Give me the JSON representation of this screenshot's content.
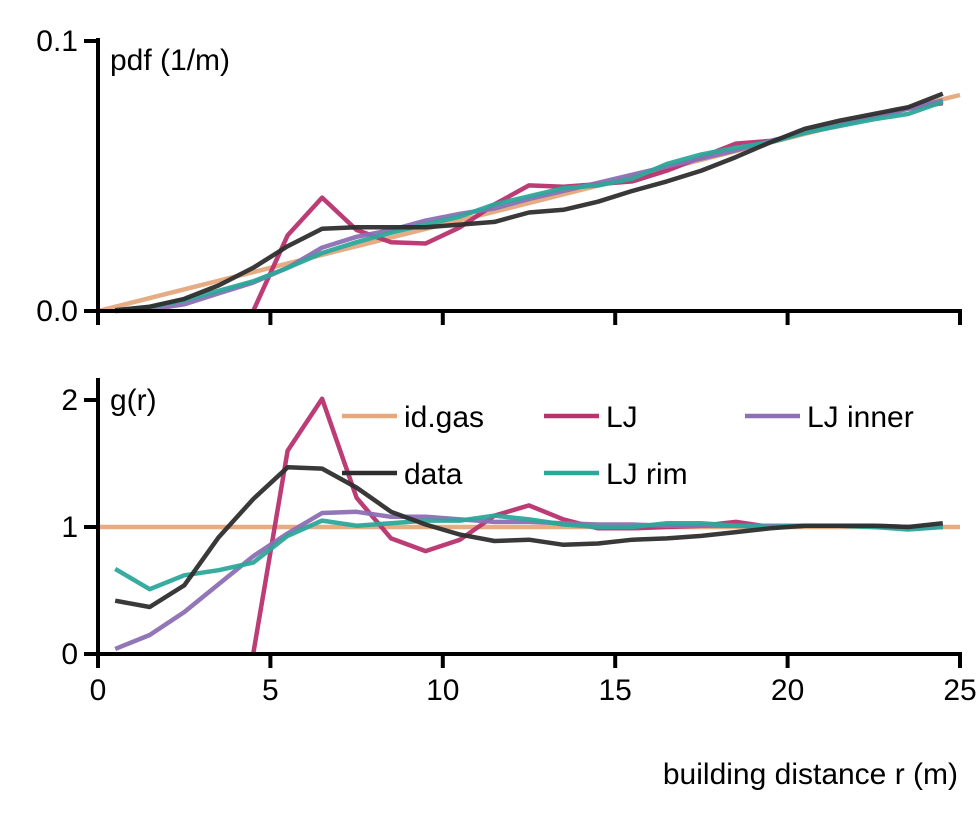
{
  "chart_data": [
    {
      "type": "line",
      "ylabel": "pdf (1/m)",
      "xlim": [
        0,
        25
      ],
      "ylim": [
        0,
        0.1
      ],
      "ytick_labels": [
        "0.0",
        "0.1"
      ],
      "ytick_values": [
        0,
        0.1
      ],
      "xtick_values": [
        0,
        5,
        10,
        15,
        20,
        25
      ],
      "series": [
        {
          "name": "id.gas",
          "color": "#e5a87c",
          "x": [
            0,
            1,
            2,
            3,
            4,
            5,
            6,
            7,
            8,
            9,
            10,
            11,
            12,
            13,
            14,
            15,
            16,
            17,
            18,
            19,
            20,
            21,
            22,
            23,
            24,
            25
          ],
          "y": [
            0.0,
            0.0032,
            0.0064,
            0.0096,
            0.0128,
            0.016,
            0.0192,
            0.0224,
            0.0256,
            0.0288,
            0.032,
            0.0352,
            0.0384,
            0.0416,
            0.0448,
            0.048,
            0.0512,
            0.0544,
            0.0576,
            0.0608,
            0.064,
            0.0672,
            0.0704,
            0.0736,
            0.0768,
            0.08
          ]
        },
        {
          "name": "LJ",
          "color": "#b8326e",
          "x": [
            4.5,
            5.5,
            6.5,
            7.5,
            8.5,
            9.5,
            10.5,
            11.5,
            12.5,
            13.5,
            14.5,
            15.5,
            16.5,
            17.5,
            18.5,
            19.5,
            20.5,
            21.5,
            22.5,
            23.5,
            24.5
          ],
          "y": [
            0.0,
            0.028,
            0.042,
            0.03,
            0.0255,
            0.025,
            0.031,
            0.0395,
            0.0465,
            0.046,
            0.047,
            0.048,
            0.052,
            0.057,
            0.062,
            0.063,
            0.066,
            0.069,
            0.072,
            0.075,
            0.077
          ]
        },
        {
          "name": "LJ inner",
          "color": "#8c6fb4",
          "x": [
            0.5,
            1.5,
            2.5,
            3.5,
            4.5,
            5.5,
            6.5,
            7.5,
            8.5,
            9.5,
            10.5,
            11.5,
            12.5,
            13.5,
            14.5,
            15.5,
            16.5,
            17.5,
            18.5,
            19.5,
            20.5,
            21.5,
            22.5,
            23.5,
            24.5
          ],
          "y": [
            0.0,
            0.0005,
            0.0025,
            0.0065,
            0.0105,
            0.016,
            0.0235,
            0.0275,
            0.03,
            0.0335,
            0.036,
            0.038,
            0.0415,
            0.0445,
            0.0475,
            0.0505,
            0.0535,
            0.0565,
            0.0595,
            0.063,
            0.066,
            0.069,
            0.072,
            0.075,
            0.078
          ]
        },
        {
          "name": "LJ rim",
          "color": "#2ca89a",
          "x": [
            0.5,
            1.5,
            2.5,
            3.5,
            4.5,
            5.5,
            6.5,
            7.5,
            8.5,
            9.5,
            10.5,
            11.5,
            12.5,
            13.5,
            14.5,
            15.5,
            16.5,
            17.5,
            18.5,
            19.5,
            20.5,
            21.5,
            22.5,
            23.5,
            24.5
          ],
          "y": [
            0.0,
            0.0015,
            0.004,
            0.0075,
            0.011,
            0.016,
            0.0215,
            0.0255,
            0.029,
            0.032,
            0.035,
            0.0395,
            0.0425,
            0.0455,
            0.0465,
            0.049,
            0.0545,
            0.058,
            0.0605,
            0.0625,
            0.066,
            0.0685,
            0.071,
            0.073,
            0.0775
          ]
        },
        {
          "name": "data",
          "color": "#2e2e2e",
          "x": [
            0.5,
            1.5,
            2.5,
            3.5,
            4.5,
            5.5,
            6.5,
            7.5,
            8.5,
            9.5,
            10.5,
            11.5,
            12.5,
            13.5,
            14.5,
            15.5,
            16.5,
            17.5,
            18.5,
            19.5,
            20.5,
            21.5,
            22.5,
            23.5,
            24.5
          ],
          "y": [
            0.0003,
            0.0016,
            0.0045,
            0.0095,
            0.016,
            0.024,
            0.0305,
            0.031,
            0.031,
            0.031,
            0.032,
            0.033,
            0.0365,
            0.0375,
            0.0405,
            0.0445,
            0.048,
            0.052,
            0.057,
            0.0625,
            0.0675,
            0.0705,
            0.073,
            0.0755,
            0.0805
          ]
        }
      ]
    },
    {
      "type": "line",
      "ylabel": "g(r)",
      "xlabel": "building distance r (m)",
      "xlim": [
        0,
        25
      ],
      "ylim": [
        0,
        2.15
      ],
      "ytick_labels": [
        "0",
        "1",
        "2"
      ],
      "ytick_values": [
        0,
        1,
        2
      ],
      "xtick_labels": [
        "0",
        "5",
        "10",
        "15",
        "20",
        "25"
      ],
      "xtick_values": [
        0,
        5,
        10,
        15,
        20,
        25
      ],
      "legend": {
        "placement": "top-right",
        "entries": [
          {
            "label": "id.gas",
            "color": "#e5a87c"
          },
          {
            "label": "LJ",
            "color": "#b8326e"
          },
          {
            "label": "LJ inner",
            "color": "#8c6fb4"
          },
          {
            "label": "data",
            "color": "#2e2e2e"
          },
          {
            "label": "LJ rim",
            "color": "#2ca89a"
          }
        ]
      },
      "series": [
        {
          "name": "id.gas",
          "color": "#e5a87c",
          "x": [
            0,
            25
          ],
          "y": [
            1.0,
            1.0
          ]
        },
        {
          "name": "LJ",
          "color": "#b8326e",
          "x": [
            4.5,
            5.5,
            6.5,
            7.5,
            8.5,
            9.5,
            10.5,
            11.5,
            12.5,
            13.5,
            14.5,
            15.5,
            16.5,
            17.5,
            18.5,
            19.5,
            20.5,
            21.5,
            22.5,
            23.5,
            24.5
          ],
          "y": [
            0.0,
            1.6,
            2.01,
            1.23,
            0.91,
            0.81,
            0.9,
            1.09,
            1.17,
            1.06,
            0.99,
            0.99,
            1.0,
            1.01,
            1.04,
            1.0,
            1.01,
            1.01,
            1.01,
            1.0,
            1.0
          ]
        },
        {
          "name": "LJ inner",
          "color": "#8c6fb4",
          "x": [
            0.5,
            1.5,
            2.5,
            3.5,
            4.5,
            5.5,
            6.5,
            7.5,
            8.5,
            9.5,
            10.5,
            11.5,
            12.5,
            13.5,
            14.5,
            15.5,
            16.5,
            17.5,
            18.5,
            19.5,
            20.5,
            21.5,
            22.5,
            23.5,
            24.5
          ],
          "y": [
            0.04,
            0.15,
            0.33,
            0.55,
            0.77,
            0.95,
            1.11,
            1.12,
            1.08,
            1.08,
            1.06,
            1.04,
            1.04,
            1.03,
            1.02,
            1.02,
            1.01,
            1.01,
            1.01,
            1.01,
            1.01,
            1.01,
            1.0,
            1.0,
            1.0
          ]
        },
        {
          "name": "LJ rim",
          "color": "#2ca89a",
          "x": [
            0.5,
            1.5,
            2.5,
            3.5,
            4.5,
            5.5,
            6.5,
            7.5,
            8.5,
            9.5,
            10.5,
            11.5,
            12.5,
            13.5,
            14.5,
            15.5,
            16.5,
            17.5,
            18.5,
            19.5,
            20.5,
            21.5,
            22.5,
            23.5,
            24.5
          ],
          "y": [
            0.67,
            0.51,
            0.62,
            0.66,
            0.72,
            0.93,
            1.05,
            1.01,
            1.03,
            1.05,
            1.05,
            1.09,
            1.06,
            1.02,
            1.0,
            1.0,
            1.03,
            1.03,
            1.01,
            1.0,
            1.01,
            1.01,
            1.0,
            0.98,
            1.0
          ]
        },
        {
          "name": "data",
          "color": "#2e2e2e",
          "x": [
            0.5,
            1.5,
            2.5,
            3.5,
            4.5,
            5.5,
            6.5,
            7.5,
            8.5,
            9.5,
            10.5,
            11.5,
            12.5,
            13.5,
            14.5,
            15.5,
            16.5,
            17.5,
            18.5,
            19.5,
            20.5,
            21.5,
            22.5,
            23.5,
            24.5
          ],
          "y": [
            0.42,
            0.37,
            0.54,
            0.92,
            1.22,
            1.47,
            1.46,
            1.31,
            1.12,
            1.02,
            0.94,
            0.89,
            0.9,
            0.86,
            0.87,
            0.9,
            0.91,
            0.93,
            0.96,
            0.99,
            1.01,
            1.01,
            1.01,
            1.0,
            1.03
          ]
        }
      ]
    }
  ]
}
